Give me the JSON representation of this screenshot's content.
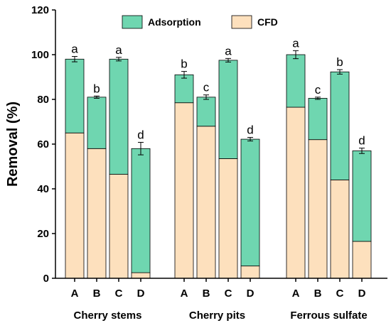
{
  "chart_data": {
    "type": "bar",
    "stacked": true,
    "title": "",
    "ylabel": "Removal (%)",
    "ylim": [
      0,
      120
    ],
    "yticks": [
      0,
      20,
      40,
      60,
      80,
      100,
      120
    ],
    "legend_position": "top-center",
    "grid": false,
    "groups": [
      {
        "name": "Cherry stems",
        "categories": [
          "A",
          "B",
          "C",
          "D"
        ]
      },
      {
        "name": "Cherry pits",
        "categories": [
          "A",
          "B",
          "C",
          "D"
        ]
      },
      {
        "name": "Ferrous sulfate",
        "categories": [
          "A",
          "B",
          "C",
          "D"
        ]
      }
    ],
    "series": [
      {
        "name": "CFD",
        "color": "#fde0bd",
        "values": [
          65,
          58,
          46.5,
          2.5,
          78.5,
          68,
          53.5,
          5.5,
          76.5,
          62,
          44,
          16.5
        ]
      },
      {
        "name": "Adsorption",
        "color": "#6fd6b0",
        "values": [
          33,
          23,
          51.5,
          55.5,
          12.5,
          13,
          44,
          56.7,
          23.5,
          18.5,
          48.3,
          40.5
        ]
      }
    ],
    "totals": [
      98,
      81,
      98,
      58,
      91,
      81,
      97.5,
      62.2,
      100,
      80.5,
      92.3,
      57
    ],
    "errors": [
      1.2,
      0.5,
      0.8,
      2.8,
      1.5,
      1,
      0.8,
      0.8,
      1.8,
      0.5,
      1,
      1.2
    ],
    "significance": [
      "a",
      "b",
      "a",
      "d",
      "b",
      "c",
      "a",
      "d",
      "a",
      "c",
      "b",
      "d"
    ]
  }
}
